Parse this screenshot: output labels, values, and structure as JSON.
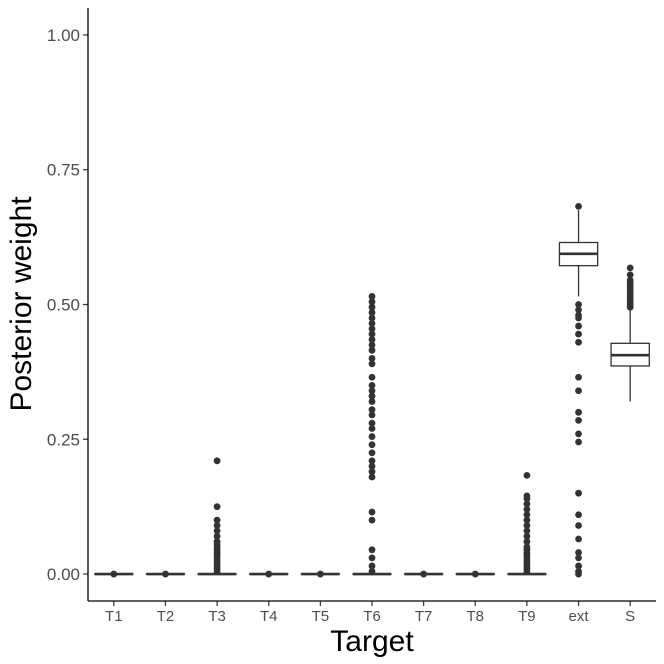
{
  "chart_data": {
    "type": "boxplot",
    "xlabel": "Target",
    "ylabel": "Posterior weight",
    "ylim": [
      -0.05,
      1.05
    ],
    "yticks": [
      0.0,
      0.25,
      0.5,
      0.75,
      1.0
    ],
    "ytick_labels": [
      "0.00",
      "0.25",
      "0.50",
      "0.75",
      "1.00"
    ],
    "categories": [
      "T1",
      "T2",
      "T3",
      "T4",
      "T5",
      "T6",
      "T7",
      "T8",
      "T9",
      "ext",
      "S"
    ],
    "boxes": [
      {
        "category": "T1",
        "whisker_low": 0.0,
        "q1": 0.0,
        "median": 0.0,
        "q3": 0.0,
        "whisker_high": 0.0,
        "outliers": [
          0.0
        ]
      },
      {
        "category": "T2",
        "whisker_low": 0.0,
        "q1": 0.0,
        "median": 0.0,
        "q3": 0.0,
        "whisker_high": 0.0,
        "outliers": [
          0.0
        ]
      },
      {
        "category": "T3",
        "whisker_low": 0.0,
        "q1": 0.0,
        "median": 0.0,
        "q3": 0.0,
        "whisker_high": 0.0,
        "outliers": [
          0.21,
          0.125,
          0.1,
          0.09,
          0.08,
          0.07,
          0.06,
          0.055,
          0.05,
          0.045,
          0.04,
          0.035,
          0.03,
          0.025,
          0.02,
          0.015,
          0.01,
          0.005
        ]
      },
      {
        "category": "T4",
        "whisker_low": 0.0,
        "q1": 0.0,
        "median": 0.0,
        "q3": 0.0,
        "whisker_high": 0.0,
        "outliers": [
          0.0
        ]
      },
      {
        "category": "T5",
        "whisker_low": 0.0,
        "q1": 0.0,
        "median": 0.0,
        "q3": 0.0,
        "whisker_high": 0.0,
        "outliers": [
          0.0
        ]
      },
      {
        "category": "T6",
        "whisker_low": 0.0,
        "q1": 0.0,
        "median": 0.0,
        "q3": 0.0,
        "whisker_high": 0.0,
        "outliers": [
          0.515,
          0.505,
          0.495,
          0.485,
          0.475,
          0.465,
          0.455,
          0.445,
          0.435,
          0.425,
          0.415,
          0.4,
          0.39,
          0.365,
          0.35,
          0.34,
          0.33,
          0.32,
          0.305,
          0.295,
          0.28,
          0.27,
          0.255,
          0.24,
          0.225,
          0.21,
          0.2,
          0.19,
          0.18,
          0.115,
          0.1,
          0.045,
          0.03,
          0.015,
          0.005
        ]
      },
      {
        "category": "T7",
        "whisker_low": 0.0,
        "q1": 0.0,
        "median": 0.0,
        "q3": 0.0,
        "whisker_high": 0.0,
        "outliers": [
          0.0
        ]
      },
      {
        "category": "T8",
        "whisker_low": 0.0,
        "q1": 0.0,
        "median": 0.0,
        "q3": 0.0,
        "whisker_high": 0.0,
        "outliers": [
          0.0
        ]
      },
      {
        "category": "T9",
        "whisker_low": 0.0,
        "q1": 0.0,
        "median": 0.0,
        "q3": 0.0,
        "whisker_high": 0.0,
        "outliers": [
          0.183,
          0.145,
          0.14,
          0.13,
          0.12,
          0.11,
          0.1,
          0.09,
          0.08,
          0.07,
          0.06,
          0.05,
          0.045,
          0.04,
          0.035,
          0.03,
          0.025,
          0.02,
          0.015,
          0.01,
          0.005
        ]
      },
      {
        "category": "ext",
        "whisker_low": 0.515,
        "q1": 0.572,
        "median": 0.594,
        "q3": 0.615,
        "whisker_high": 0.675,
        "outliers": [
          0.682,
          0.5,
          0.49,
          0.48,
          0.475,
          0.46,
          0.445,
          0.43,
          0.365,
          0.34,
          0.3,
          0.285,
          0.26,
          0.245,
          0.15,
          0.11,
          0.09,
          0.065,
          0.04,
          0.03,
          0.015,
          0.005,
          0.0
        ]
      },
      {
        "category": "S",
        "whisker_low": 0.32,
        "q1": 0.386,
        "median": 0.406,
        "q3": 0.428,
        "whisker_high": 0.49,
        "outliers": [
          0.568,
          0.555,
          0.545,
          0.54,
          0.535,
          0.53,
          0.525,
          0.52,
          0.515,
          0.51,
          0.505,
          0.5,
          0.495
        ]
      }
    ]
  }
}
